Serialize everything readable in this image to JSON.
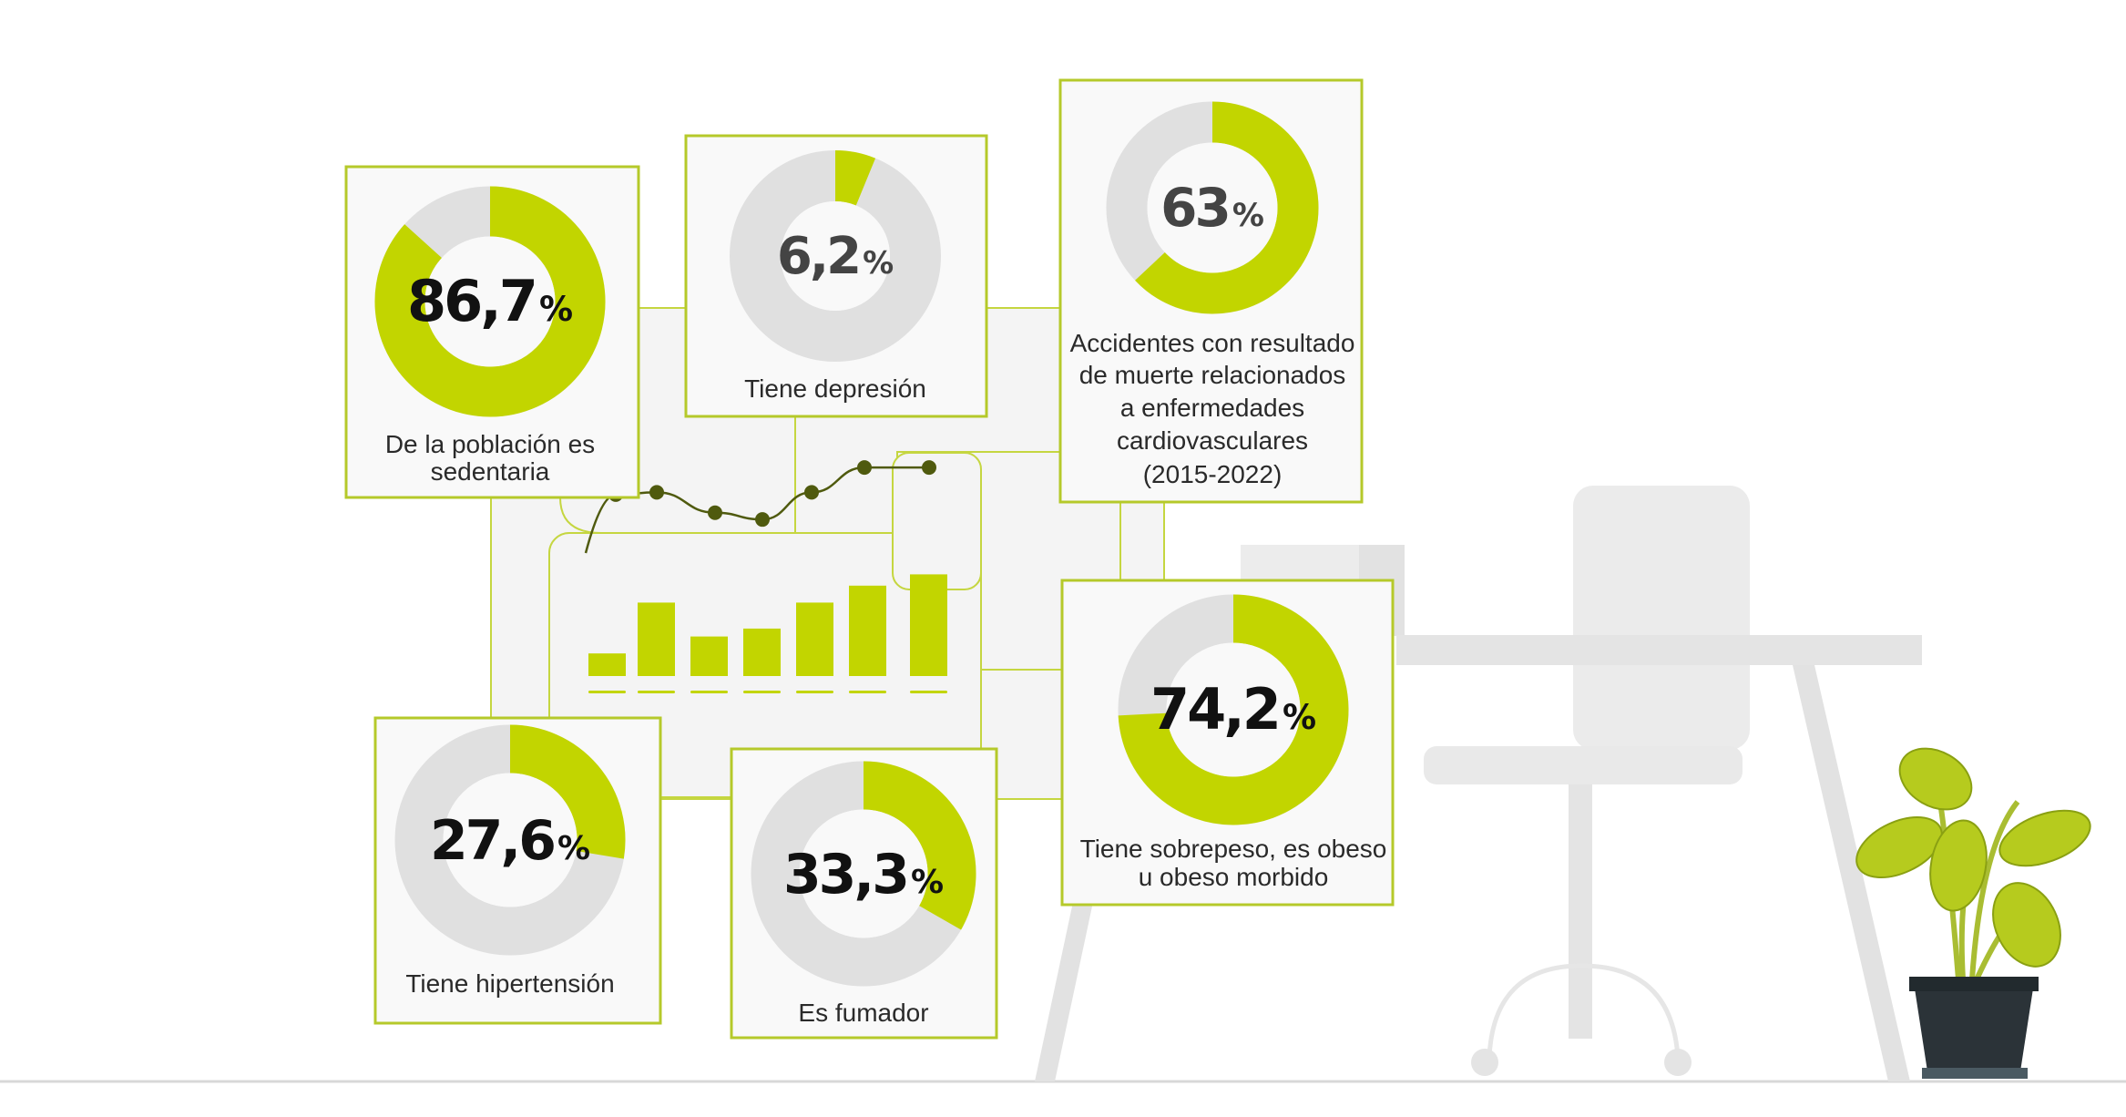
{
  "colors": {
    "accent": "#c2d500",
    "track": "#e0e0e0",
    "card_border": "#b5c92a",
    "dot": "#4f5a0e"
  },
  "stats": [
    {
      "value": 86.7,
      "number": "86,7",
      "unit": "%",
      "label_lines": [
        "De la población es",
        "sedentaria"
      ],
      "number_color": "#111111"
    },
    {
      "value": 6.2,
      "number": "6,2",
      "unit": "%",
      "label_lines": [
        "Tiene depresión"
      ],
      "number_color": "#444444"
    },
    {
      "value": 63,
      "number": "63",
      "unit": "%",
      "label_lines": [
        "Accidentes con resultado",
        "de muerte relacionados",
        "a enfermedades",
        "cardiovasculares",
        "(2015-2022)"
      ],
      "number_color": "#444444"
    },
    {
      "value": 74.2,
      "number": "74,2",
      "unit": "%",
      "label_lines": [
        "Tiene sobrepeso, es obeso",
        "u obeso morbido"
      ],
      "number_color": "#111111"
    },
    {
      "value": 27.6,
      "number": "27,6",
      "unit": "%",
      "label_lines": [
        "Tiene hipertensión"
      ],
      "number_color": "#111111"
    },
    {
      "value": 33.3,
      "number": "33,3",
      "unit": "%",
      "label_lines": [
        "Es fumador"
      ],
      "number_color": "#111111"
    }
  ],
  "decorative_chart": {
    "type": "bar",
    "bars": [
      2,
      6.5,
      3.5,
      4.2,
      6.5,
      8,
      9
    ],
    "line": [
      8.8,
      9,
      7.2,
      6.6,
      9,
      11.2,
      11.2
    ]
  }
}
